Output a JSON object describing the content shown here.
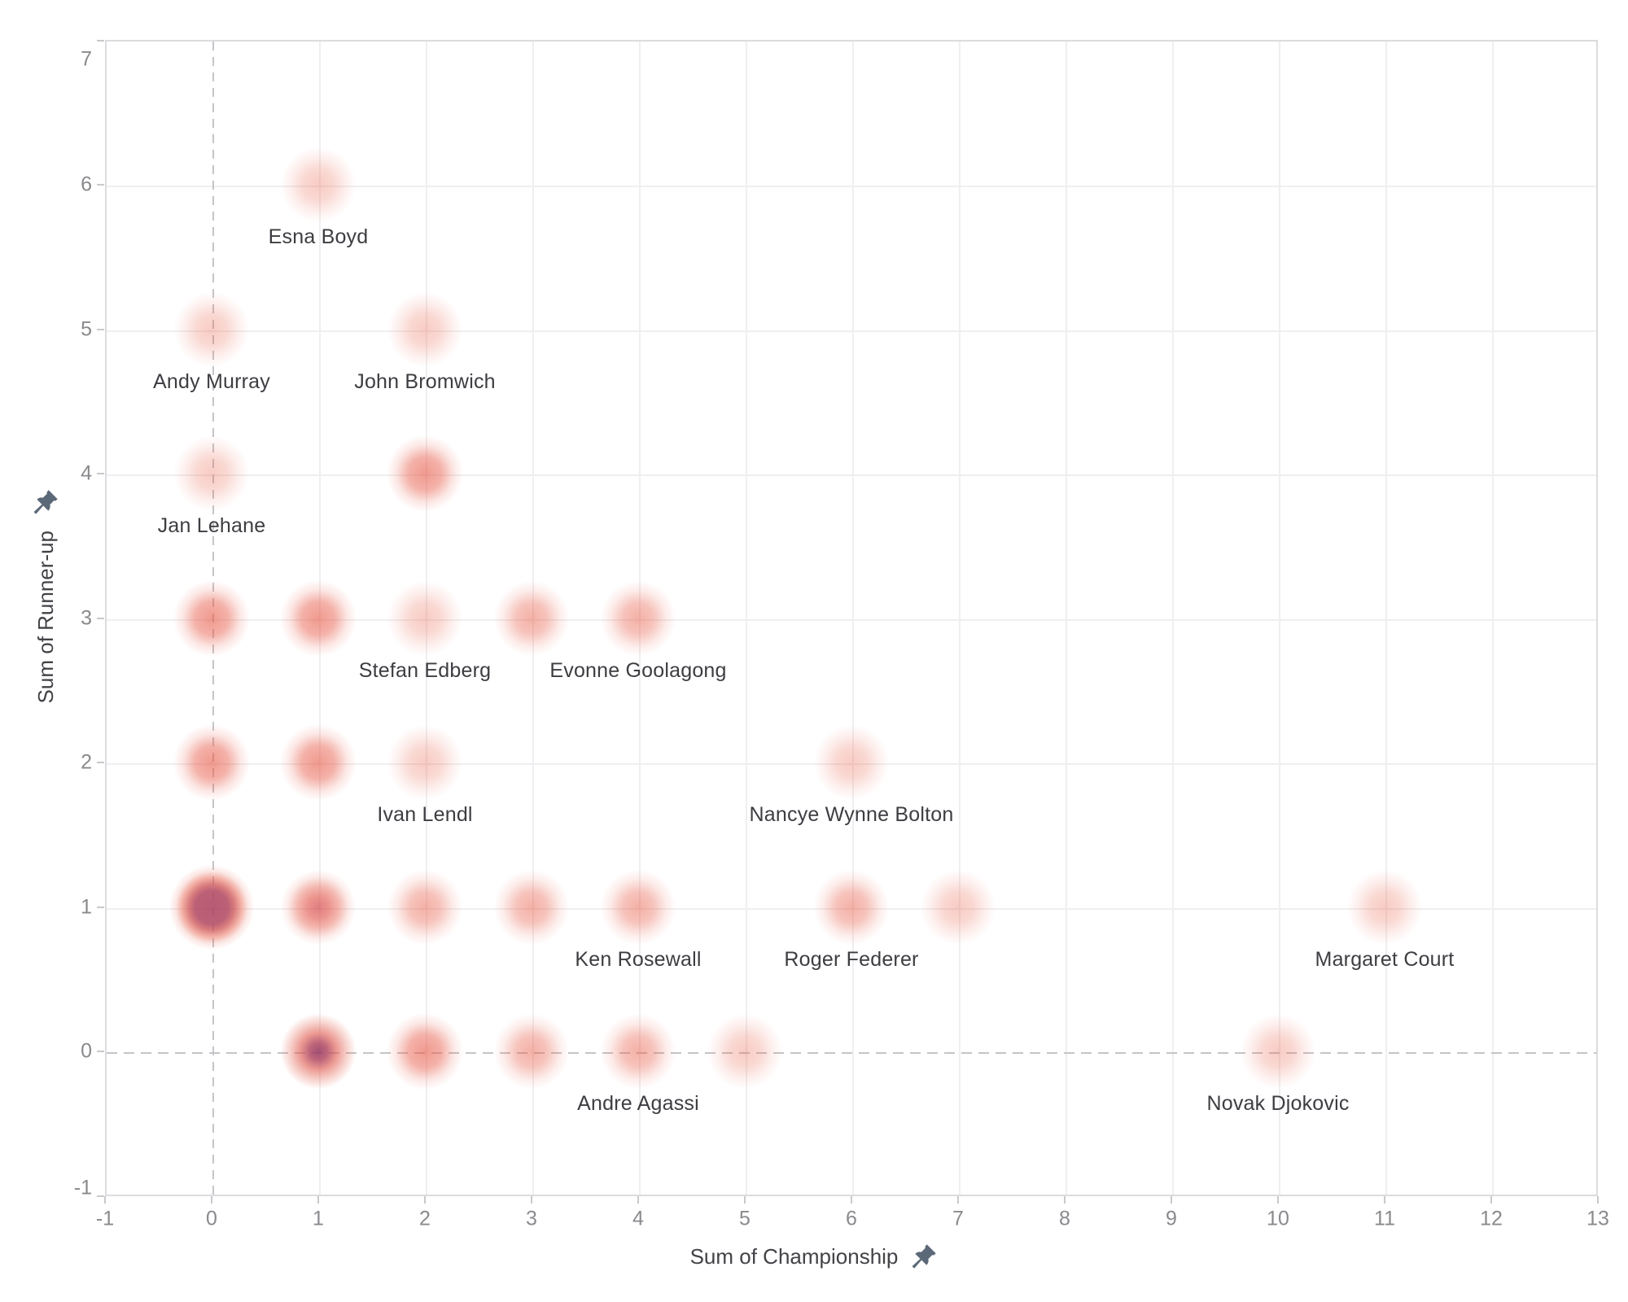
{
  "chart_data": {
    "type": "scatter",
    "title": "",
    "xlabel": "Sum of Championship",
    "ylabel": "Sum of Runner-up",
    "xlim": [
      -1,
      13
    ],
    "ylim": [
      -1,
      7
    ],
    "grid": true,
    "legend": false,
    "x_ticks": [
      -1,
      0,
      1,
      2,
      3,
      4,
      5,
      6,
      7,
      8,
      9,
      10,
      11,
      12,
      13
    ],
    "y_ticks": [
      -1,
      0,
      1,
      2,
      3,
      4,
      5,
      6,
      7
    ],
    "mark_base_color": "#e85c4a",
    "mark_high_density_color": "#a8466b",
    "zero_lines_dashed": true,
    "points": [
      {
        "x": 1,
        "y": 6,
        "density": 1,
        "label": "Esna Boyd"
      },
      {
        "x": 0,
        "y": 5,
        "density": 1,
        "label": "Andy Murray"
      },
      {
        "x": 2,
        "y": 5,
        "density": 1,
        "label": "John Bromwich"
      },
      {
        "x": 0,
        "y": 4,
        "density": 1,
        "label": "Jan Lehane"
      },
      {
        "x": 2,
        "y": 4,
        "density": 3,
        "label": ""
      },
      {
        "x": 0,
        "y": 3,
        "density": 3,
        "label": ""
      },
      {
        "x": 1,
        "y": 3,
        "density": 3,
        "label": ""
      },
      {
        "x": 2,
        "y": 3,
        "density": 1,
        "label": "Stefan Edberg"
      },
      {
        "x": 3,
        "y": 3,
        "density": 2,
        "label": ""
      },
      {
        "x": 4,
        "y": 3,
        "density": 2,
        "label": "Evonne Goolagong"
      },
      {
        "x": 0,
        "y": 2,
        "density": 3,
        "label": ""
      },
      {
        "x": 1,
        "y": 2,
        "density": 3,
        "label": ""
      },
      {
        "x": 2,
        "y": 2,
        "density": 1,
        "label": "Ivan Lendl"
      },
      {
        "x": 6,
        "y": 2,
        "density": 1,
        "label": "Nancye Wynne Bolton"
      },
      {
        "x": 0,
        "y": 1,
        "density": 6,
        "label": ""
      },
      {
        "x": 1,
        "y": 1,
        "density": 4,
        "label": ""
      },
      {
        "x": 2,
        "y": 1,
        "density": 2,
        "label": ""
      },
      {
        "x": 3,
        "y": 1,
        "density": 2,
        "label": ""
      },
      {
        "x": 4,
        "y": 1,
        "density": 2,
        "label": "Ken Rosewall"
      },
      {
        "x": 6,
        "y": 1,
        "density": 2,
        "label": "Roger Federer"
      },
      {
        "x": 7,
        "y": 1,
        "density": 1,
        "label": ""
      },
      {
        "x": 11,
        "y": 1,
        "density": 1,
        "label": "Margaret Court"
      },
      {
        "x": 1,
        "y": 0,
        "density": 5,
        "label": ""
      },
      {
        "x": 2,
        "y": 0,
        "density": 3,
        "label": ""
      },
      {
        "x": 3,
        "y": 0,
        "density": 2,
        "label": ""
      },
      {
        "x": 4,
        "y": 0,
        "density": 2,
        "label": "Andre Agassi"
      },
      {
        "x": 5,
        "y": 0,
        "density": 1,
        "label": ""
      },
      {
        "x": 10,
        "y": 0,
        "density": 1,
        "label": "Novak Djokovic"
      }
    ]
  },
  "axes": {
    "x_title": "Sum of Championship",
    "y_title": "Sum of Runner-up",
    "pin_color": "#5b6877"
  }
}
